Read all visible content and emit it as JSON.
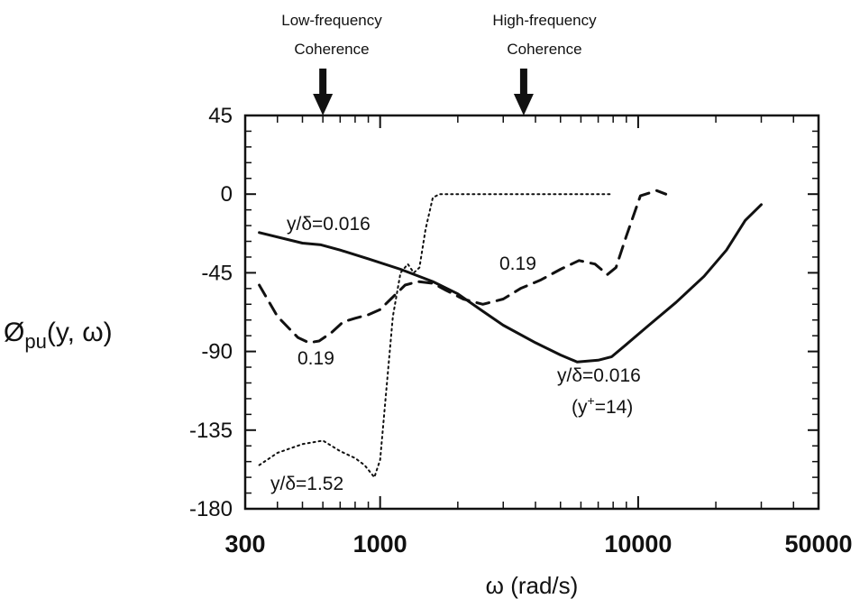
{
  "chart_data": {
    "type": "line",
    "title": "",
    "xlabel": "ω (rad/s)",
    "ylabel": "Øpu(y, ω)",
    "x_scale": "log",
    "xlim": [
      300,
      50000
    ],
    "ylim": [
      -180,
      45
    ],
    "x_ticks": [
      300,
      1000,
      10000,
      50000
    ],
    "x_tick_labels": [
      "300",
      "1000",
      "10000",
      "50000"
    ],
    "y_ticks": [
      45,
      0,
      -45,
      -90,
      -135,
      -180
    ],
    "y_tick_labels": [
      "45",
      "0",
      "-45",
      "-90",
      "-135",
      "-180"
    ],
    "grid": false,
    "series": [
      {
        "name": "y/δ=0.016",
        "style": "solid",
        "color": "#111111",
        "x": [
          340,
          500,
          590,
          700,
          900,
          1200,
          1600,
          2000,
          2500,
          3000,
          4000,
          5000,
          5800,
          7000,
          7900,
          9000,
          11000,
          14000,
          18000,
          22000,
          26000,
          30000
        ],
        "y": [
          -22,
          -28,
          -29,
          -32,
          -37,
          -43,
          -50,
          -57,
          -67,
          -75,
          -85,
          -92,
          -96,
          -95,
          -93,
          -86,
          -75,
          -62,
          -47,
          -32,
          -15,
          -6
        ]
      },
      {
        "name": "0.19",
        "style": "dashed",
        "color": "#111111",
        "x": [
          340,
          400,
          480,
          530,
          580,
          650,
          720,
          800,
          900,
          1000,
          1100,
          1250,
          1400,
          1600,
          1800,
          2100,
          2500,
          3000,
          3500,
          4200,
          5000,
          5900,
          6800,
          7600,
          8200,
          9000,
          10200,
          11800,
          12800
        ],
        "y": [
          -52,
          -70,
          -82,
          -85,
          -84,
          -79,
          -73,
          -71,
          -69,
          -66,
          -60,
          -52,
          -50,
          -51,
          -55,
          -60,
          -63,
          -60,
          -54,
          -49,
          -43,
          -38,
          -40,
          -46,
          -42,
          -24,
          -1,
          2,
          0
        ]
      },
      {
        "name": "y/δ=1.52",
        "style": "dotted",
        "color": "#111111",
        "x": [
          340,
          400,
          500,
          600,
          700,
          800,
          870,
          950,
          1000,
          1060,
          1120,
          1200,
          1280,
          1350,
          1420,
          1500,
          1600,
          1700,
          1800,
          2000,
          2500,
          3500,
          5000,
          6500,
          8000
        ],
        "y": [
          -155,
          -148,
          -143,
          -141,
          -147,
          -151,
          -155,
          -162,
          -152,
          -110,
          -70,
          -45,
          -40,
          -45,
          -42,
          -20,
          -2,
          0,
          0,
          0,
          0,
          0,
          0,
          0,
          0
        ]
      }
    ],
    "annotations": [
      "y/δ=0.016",
      "0.19",
      "0.19",
      "y/δ=0.016",
      "(y+=14)",
      "y/δ=1.52",
      "Low-frequency",
      "Coherence",
      "High-frequency",
      "Coherence"
    ],
    "arrows": [
      {
        "label": "Low-frequency Coherence",
        "x": 600
      },
      {
        "label": "High-frequency Coherence",
        "x": 3600
      }
    ]
  }
}
